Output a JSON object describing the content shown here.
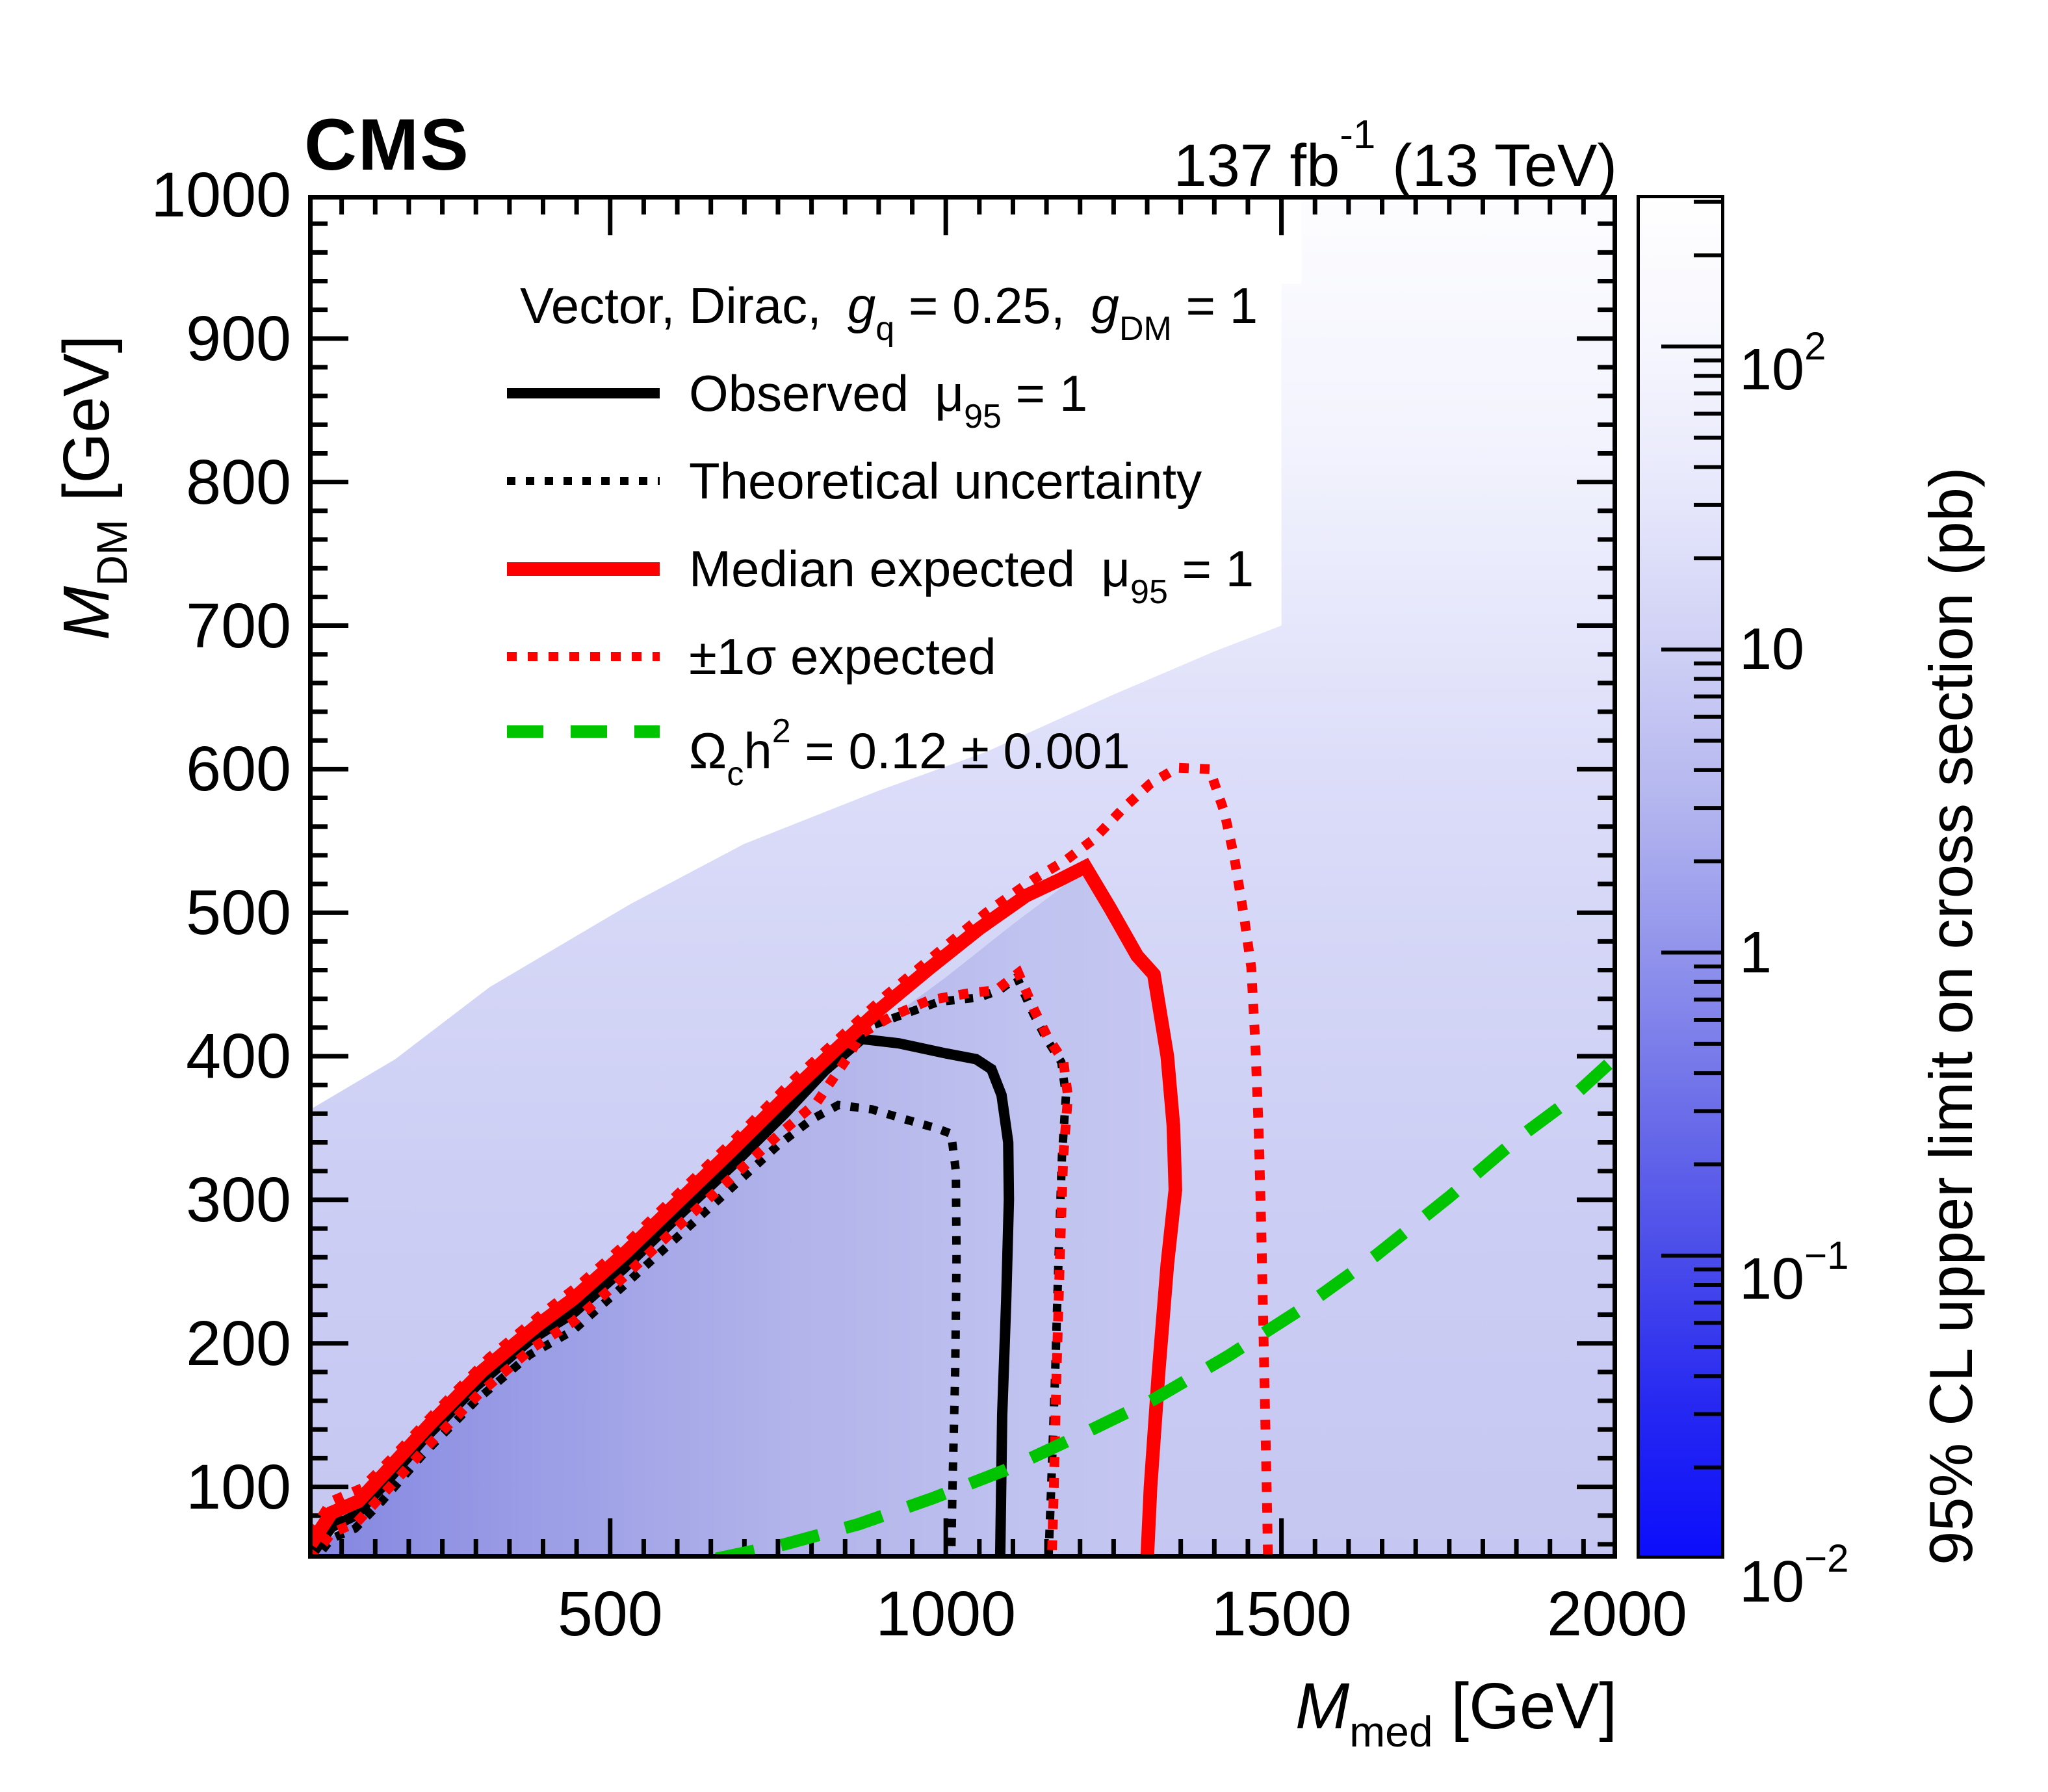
{
  "header": {
    "experiment": "CMS",
    "lumi_prefix": "137 fb",
    "lumi_sup": "-1",
    "energy": " (13 TeV)"
  },
  "axes": {
    "x": {
      "title_symbol": "M",
      "title_sub": "med",
      "title_unit": " [GeV]",
      "range_gev": [
        50,
        2000
      ],
      "major_step": 500,
      "minor_step": 50,
      "tick_labels": [
        500,
        1000,
        1500,
        2000
      ]
    },
    "y": {
      "title_symbol": "M",
      "title_sub": "DM",
      "title_unit": " [GeV]",
      "range_gev": [
        50,
        1000
      ],
      "major_step": 100,
      "minor_step": 20,
      "tick_labels": [
        100,
        200,
        300,
        400,
        500,
        600,
        700,
        800,
        900,
        1000
      ]
    },
    "z": {
      "title": "95% CL upper limit on cross section (pb)",
      "log10_range": [
        -2,
        2.5
      ],
      "tick_labels": [
        {
          "base": "10",
          "sup": "2"
        },
        {
          "base": "10",
          "sup": ""
        },
        {
          "base": "1",
          "sup": ""
        },
        {
          "base": "10",
          "sup": "−1"
        },
        {
          "base": "10",
          "sup": "−2"
        }
      ]
    }
  },
  "legend": {
    "title": {
      "t1": "Vector, Dirac,",
      "g1": "g",
      "g1_sub": "q",
      "t2": " = 0.25,",
      "g2": "g",
      "g2_sub": "DM",
      "t3": " = 1"
    },
    "entries": [
      {
        "style": "black-solid",
        "pre": "Observed",
        "sym": "μ",
        "sub": "95",
        "post": " = 1"
      },
      {
        "style": "black-dotted",
        "pre": "Theoretical uncertainty",
        "sym": "",
        "sub": "",
        "post": ""
      },
      {
        "style": "red-solid",
        "pre": "Median expected",
        "sym": "μ",
        "sub": "95",
        "post": " = 1"
      },
      {
        "style": "red-dotted",
        "pre": "±1σ expected",
        "sym": "",
        "sub": "",
        "post": ""
      },
      {
        "style": "green-dashed",
        "pre": "Ω",
        "sym": "",
        "sub": "c",
        "post": "",
        "p2": "h",
        "sup2": "2",
        "p3": " = 0.12  ± 0.001"
      }
    ]
  },
  "chart_data": {
    "type": "heatmap",
    "title": "Vector mediator, Dirac DM, gq = 0.25, gDM = 1 exclusion limits",
    "xlabel": "M_med [GeV]",
    "ylabel": "M_DM [GeV]",
    "zlabel": "95% CL upper limit on cross section (pb)",
    "x_range_gev": [
      50,
      2000
    ],
    "y_range_gev": [
      50,
      1000
    ],
    "z_range_pb": [
      0.01,
      316
    ],
    "colors": {
      "accent_red": "#ff0000",
      "accent_green": "#00c400",
      "black": "#000000",
      "heat_dark_corner": "#8486e1",
      "heat_mid": "#c6c8f2",
      "heat_light": "#fdfdff"
    },
    "series": [
      {
        "name": "observed",
        "legend": "Observed μ95 = 1",
        "color": "#000000",
        "style": "solid",
        "width": 16,
        "dash": null,
        "points": [
          [
            54,
            52
          ],
          [
            85,
            72
          ],
          [
            120,
            80
          ],
          [
            160,
            100
          ],
          [
            220,
            132
          ],
          [
            300,
            170
          ],
          [
            380,
            202
          ],
          [
            445,
            221
          ],
          [
            520,
            252
          ],
          [
            600,
            288
          ],
          [
            680,
            323
          ],
          [
            760,
            360
          ],
          [
            820,
            390
          ],
          [
            875,
            412
          ],
          [
            930,
            409
          ],
          [
            1000,
            402
          ],
          [
            1045,
            398
          ],
          [
            1068,
            391
          ],
          [
            1083,
            373
          ],
          [
            1093,
            340
          ],
          [
            1094,
            300
          ],
          [
            1090,
            230
          ],
          [
            1084,
            150
          ],
          [
            1081,
            50
          ]
        ]
      },
      {
        "name": "theory_uncertainty_upper",
        "legend": "Theoretical uncertainty",
        "color": "#000000",
        "style": "dotted",
        "width": 13,
        "dash": [
          13,
          16
        ],
        "points": [
          [
            54,
            58
          ],
          [
            85,
            78
          ],
          [
            125,
            87
          ],
          [
            165,
            107
          ],
          [
            230,
            140
          ],
          [
            310,
            178
          ],
          [
            390,
            209
          ],
          [
            445,
            228
          ],
          [
            520,
            259
          ],
          [
            600,
            295
          ],
          [
            680,
            330
          ],
          [
            760,
            367
          ],
          [
            820,
            396
          ],
          [
            875,
            419
          ],
          [
            930,
            428
          ],
          [
            990,
            438
          ],
          [
            1050,
            441
          ],
          [
            1080,
            446
          ],
          [
            1106,
            455
          ],
          [
            1130,
            430
          ],
          [
            1150,
            412
          ],
          [
            1172,
            396
          ],
          [
            1179,
            373
          ],
          [
            1173,
            330
          ],
          [
            1168,
            260
          ],
          [
            1163,
            180
          ],
          [
            1157,
            100
          ],
          [
            1153,
            50
          ]
        ]
      },
      {
        "name": "theory_uncertainty_lower",
        "legend": "Theoretical uncertainty",
        "color": "#000000",
        "style": "dotted",
        "width": 13,
        "dash": [
          13,
          16
        ],
        "points": [
          [
            54,
            46
          ],
          [
            85,
            64
          ],
          [
            120,
            71
          ],
          [
            160,
            90
          ],
          [
            220,
            122
          ],
          [
            300,
            160
          ],
          [
            380,
            192
          ],
          [
            445,
            209
          ],
          [
            520,
            240
          ],
          [
            600,
            274
          ],
          [
            680,
            308
          ],
          [
            750,
            338
          ],
          [
            800,
            356
          ],
          [
            840,
            366
          ],
          [
            890,
            363
          ],
          [
            940,
            356
          ],
          [
            985,
            350
          ],
          [
            1008,
            346
          ],
          [
            1015,
            320
          ],
          [
            1016,
            260
          ],
          [
            1014,
            180
          ],
          [
            1010,
            100
          ],
          [
            1008,
            50
          ]
        ]
      },
      {
        "name": "median_expected",
        "legend": "Median expected μ95 = 1",
        "color": "#ff0000",
        "style": "solid",
        "width": 21,
        "dash": null,
        "points": [
          [
            54,
            60
          ],
          [
            85,
            82
          ],
          [
            125,
            90
          ],
          [
            165,
            110
          ],
          [
            230,
            143
          ],
          [
            310,
            181
          ],
          [
            390,
            212
          ],
          [
            445,
            231
          ],
          [
            520,
            262
          ],
          [
            600,
            298
          ],
          [
            680,
            334
          ],
          [
            760,
            371
          ],
          [
            830,
            402
          ],
          [
            900,
            432
          ],
          [
            975,
            461
          ],
          [
            1050,
            489
          ],
          [
            1120,
            512
          ],
          [
            1170,
            523
          ],
          [
            1208,
            532
          ],
          [
            1245,
            503
          ],
          [
            1285,
            470
          ],
          [
            1310,
            457
          ],
          [
            1330,
            400
          ],
          [
            1339,
            352
          ],
          [
            1342,
            307
          ],
          [
            1330,
            255
          ],
          [
            1317,
            180
          ],
          [
            1305,
            100
          ],
          [
            1300,
            50
          ]
        ]
      },
      {
        "name": "expected_plus_1sigma",
        "legend": "+1σ expected",
        "color": "#ff0000",
        "style": "dotted",
        "width": 15,
        "dash": [
          15,
          17
        ],
        "points": [
          [
            54,
            67
          ],
          [
            85,
            90
          ],
          [
            130,
            99
          ],
          [
            175,
            120
          ],
          [
            240,
            152
          ],
          [
            320,
            190
          ],
          [
            400,
            221
          ],
          [
            455,
            241
          ],
          [
            530,
            272
          ],
          [
            610,
            308
          ],
          [
            690,
            344
          ],
          [
            770,
            382
          ],
          [
            840,
            412
          ],
          [
            910,
            442
          ],
          [
            985,
            471
          ],
          [
            1060,
            500
          ],
          [
            1130,
            523
          ],
          [
            1180,
            537
          ],
          [
            1220,
            551
          ],
          [
            1265,
            573
          ],
          [
            1305,
            590
          ],
          [
            1345,
            601
          ],
          [
            1393,
            600
          ],
          [
            1415,
            570
          ],
          [
            1430,
            538
          ],
          [
            1445,
            495
          ],
          [
            1455,
            462
          ],
          [
            1461,
            410
          ],
          [
            1466,
            350
          ],
          [
            1470,
            280
          ],
          [
            1474,
            190
          ],
          [
            1478,
            100
          ],
          [
            1480,
            50
          ]
        ]
      },
      {
        "name": "expected_minus_1sigma",
        "legend": "-1σ expected",
        "color": "#ff0000",
        "style": "dotted",
        "width": 15,
        "dash": [
          15,
          17
        ],
        "points": [
          [
            54,
            49
          ],
          [
            85,
            68
          ],
          [
            122,
            75
          ],
          [
            162,
            95
          ],
          [
            225,
            127
          ],
          [
            305,
            165
          ],
          [
            385,
            197
          ],
          [
            445,
            215
          ],
          [
            520,
            246
          ],
          [
            600,
            281
          ],
          [
            680,
            315
          ],
          [
            755,
            347
          ],
          [
            808,
            368
          ],
          [
            855,
            400
          ],
          [
            875,
            416
          ],
          [
            920,
            428
          ],
          [
            975,
            439
          ],
          [
            1035,
            444
          ],
          [
            1075,
            446
          ],
          [
            1108,
            458
          ],
          [
            1132,
            432
          ],
          [
            1152,
            413
          ],
          [
            1175,
            397
          ],
          [
            1182,
            372
          ],
          [
            1175,
            330
          ],
          [
            1170,
            260
          ],
          [
            1165,
            180
          ],
          [
            1161,
            100
          ],
          [
            1158,
            50
          ]
        ]
      },
      {
        "name": "relic_density",
        "legend": "Ωch2 = 0.12 ± 0.001",
        "color": "#00c400",
        "style": "dashed",
        "width": 19,
        "dash": [
          60,
          42
        ],
        "points": [
          [
            658,
            50
          ],
          [
            760,
            60
          ],
          [
            870,
            74
          ],
          [
            980,
            92
          ],
          [
            1090,
            112
          ],
          [
            1200,
            136
          ],
          [
            1310,
            161
          ],
          [
            1420,
            191
          ],
          [
            1530,
            224
          ],
          [
            1640,
            261
          ],
          [
            1750,
            302
          ],
          [
            1850,
            342
          ],
          [
            1925,
            368
          ],
          [
            2000,
            400
          ]
        ]
      }
    ],
    "heatmap_regions": [
      {
        "name": "base-field",
        "fill": "url(#bgGrad)",
        "points": [
          [
            50,
            50
          ],
          [
            2000,
            50
          ],
          [
            2000,
            1000
          ],
          [
            50,
            1000
          ]
        ]
      },
      {
        "name": "onshell-dark-wedge",
        "fill": "url(#darkGrad)",
        "points": [
          [
            50,
            50
          ],
          [
            160,
            98
          ],
          [
            260,
            150
          ],
          [
            380,
            200
          ],
          [
            445,
            220
          ],
          [
            560,
            268
          ],
          [
            680,
            320
          ],
          [
            780,
            368
          ],
          [
            875,
            412
          ],
          [
            1000,
            455
          ],
          [
            1100,
            492
          ],
          [
            1208,
            530
          ],
          [
            1270,
            490
          ],
          [
            1315,
            455
          ],
          [
            1338,
            360
          ],
          [
            1343,
            300
          ],
          [
            1330,
            220
          ],
          [
            1322,
            120
          ],
          [
            1318,
            50
          ]
        ]
      },
      {
        "name": "offshell-white-wedge",
        "fill": "#ffffff",
        "points": [
          [
            50,
            362
          ],
          [
            180,
            398
          ],
          [
            320,
            448
          ],
          [
            530,
            506
          ],
          [
            700,
            548
          ],
          [
            900,
            585
          ],
          [
            1060,
            612
          ],
          [
            1250,
            652
          ],
          [
            1400,
            682
          ],
          [
            1500,
            700
          ],
          [
            1500,
            1000
          ],
          [
            50,
            1000
          ]
        ]
      },
      {
        "name": "top-white-step-1",
        "fill": "#ffffff",
        "points": [
          [
            1370,
            938
          ],
          [
            1530,
            938
          ],
          [
            1530,
            1000
          ],
          [
            1370,
            1000
          ]
        ]
      },
      {
        "name": "top-white-step-2",
        "fill": "#ffffff",
        "points": [
          [
            1290,
            962
          ],
          [
            1370,
            962
          ],
          [
            1370,
            1000
          ],
          [
            1290,
            1000
          ]
        ]
      }
    ],
    "colorbar_gradient_top_to_bottom": [
      "#ffffff",
      "#f6f6fe",
      "#e6e7fb",
      "#cfd0f5",
      "#b4b6ef",
      "#9193ec",
      "#6d6fe9",
      "#4a4cea",
      "#2628f2",
      "#0b0dfc"
    ]
  }
}
